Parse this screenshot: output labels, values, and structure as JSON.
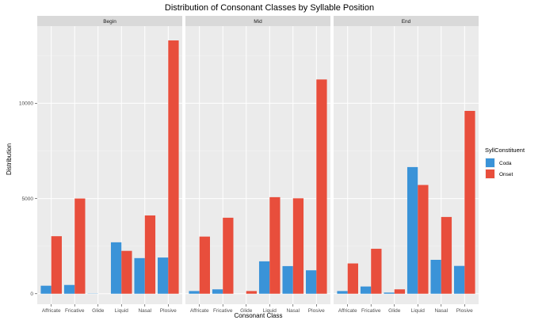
{
  "chart_data": {
    "type": "bar",
    "title": "Distribution of Consonant Classes by Syllable Position",
    "xlabel": "Consonant Class",
    "ylabel": "Distribution",
    "ylim": [
      -550,
      14050
    ],
    "yticks": [
      0,
      5000,
      10000
    ],
    "y_tick_labels": [
      "0",
      "5000",
      "10000"
    ],
    "grid": true,
    "legend_position": "right",
    "legend": {
      "title": "SyllConstituent",
      "items": [
        {
          "label": "Coda",
          "color": "#3a93d8"
        },
        {
          "label": "Onset",
          "color": "#e84e3c"
        }
      ]
    },
    "categories": [
      "Affricate",
      "Fricative",
      "Glide",
      "Liquid",
      "Nasal",
      "Plosive"
    ],
    "panels": [
      {
        "label": "Begin",
        "series": [
          {
            "name": "Coda",
            "values": [
              420,
              460,
              10,
              2700,
              1870,
              1900
            ]
          },
          {
            "name": "Onset",
            "values": [
              3020,
              5000,
              0,
              2250,
              4110,
              13300
            ]
          }
        ]
      },
      {
        "label": "Mid",
        "series": [
          {
            "name": "Coda",
            "values": [
              140,
              230,
              0,
              1700,
              1450,
              1230
            ]
          },
          {
            "name": "Onset",
            "values": [
              3000,
              3990,
              140,
              5070,
              5010,
              11250
            ]
          }
        ]
      },
      {
        "label": "End",
        "series": [
          {
            "name": "Coda",
            "values": [
              140,
              380,
              60,
              6650,
              1780,
              1460
            ]
          },
          {
            "name": "Onset",
            "values": [
              1590,
              2360,
              230,
              5710,
              4030,
              9600
            ]
          }
        ]
      }
    ],
    "colors": {
      "Coda": "#3a93d8",
      "Onset": "#e84e3c",
      "panel_background": "#ebebeb",
      "strip_background": "#d9d9d9",
      "grid_major": "#ffffff",
      "grid_minor": "#f5f5f5"
    }
  }
}
